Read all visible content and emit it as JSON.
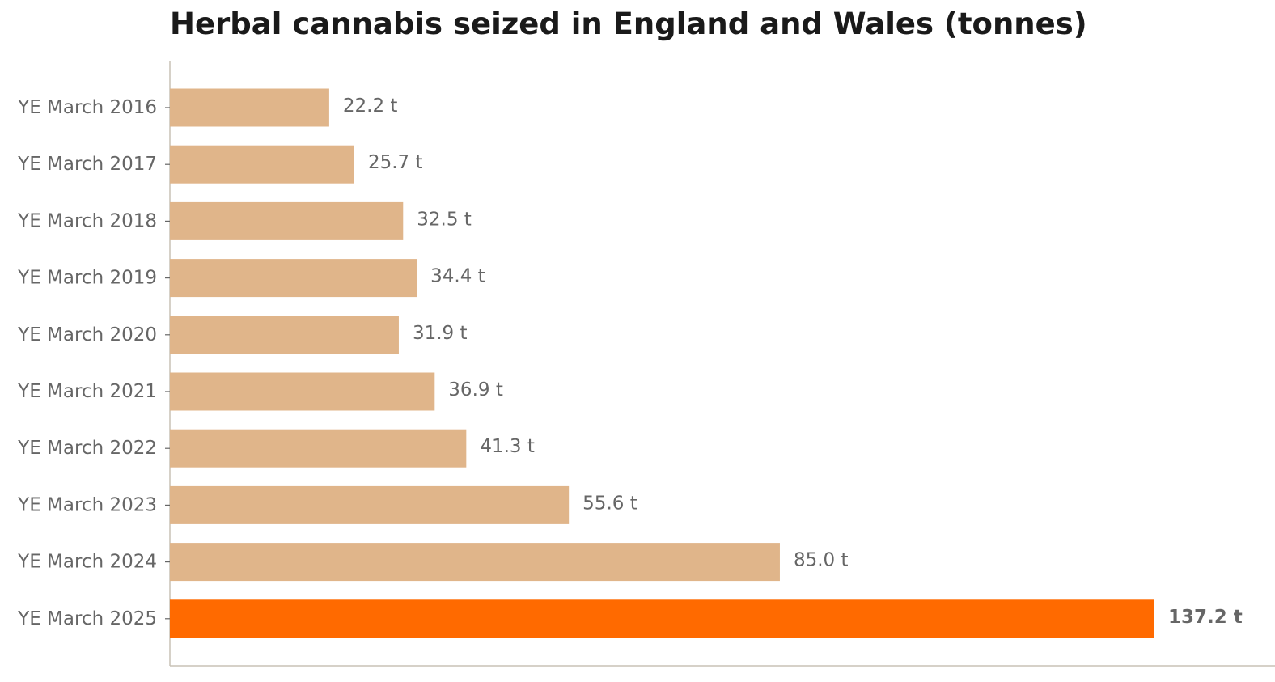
{
  "chart_data": {
    "type": "bar",
    "orientation": "horizontal",
    "title": "Herbal cannabis seized in England and Wales (tonnes)",
    "xlabel": "",
    "ylabel": "",
    "categories": [
      "YE March 2016",
      "YE March 2017",
      "YE March 2018",
      "YE March 2019",
      "YE March 2020",
      "YE March 2021",
      "YE March 2022",
      "YE March 2023",
      "YE March 2024",
      "YE March 2025"
    ],
    "values": [
      22.2,
      25.7,
      32.5,
      34.4,
      31.9,
      36.9,
      41.3,
      55.6,
      85.0,
      137.2
    ],
    "value_labels": [
      "22.2 t",
      "25.7 t",
      "32.5 t",
      "34.4 t",
      "31.9 t",
      "36.9 t",
      "41.3 t",
      "55.6 t",
      "85.0 t",
      "137.2 t"
    ],
    "highlight_index": 9,
    "xlim": [
      0,
      154
    ],
    "grid": false,
    "legend": "none",
    "colors": {
      "bar": "#e0b58a",
      "highlight": "#ff6a00",
      "axis": "#c8c2b6",
      "label": "#666666",
      "title": "#1a1a1a"
    }
  }
}
